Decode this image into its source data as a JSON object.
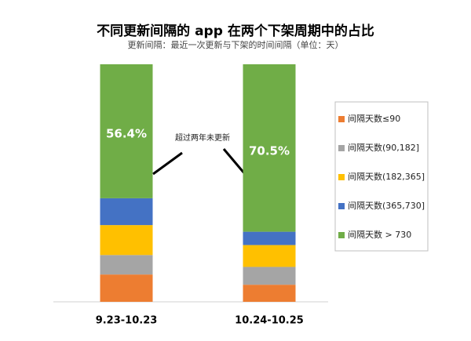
{
  "chart_data": {
    "type": "stacked_bar",
    "title": "不同更新间隔的 app 在两个下架周期中的占比",
    "subtitle": "更新间隔：最近一次更新与下架的时间间隔（单位：天）",
    "annotation": "超过两年未更新",
    "categories": [
      "9.23-10.23",
      "10.24-10.25"
    ],
    "series": [
      {
        "name": "间隔天数≤90",
        "color": "#ed7d31",
        "values": [
          11.5,
          7.2
        ]
      },
      {
        "name": "间隔天数(90,182]",
        "color": "#a5a5a5",
        "values": [
          8.2,
          7.5
        ]
      },
      {
        "name": "间隔天数(182,365]",
        "color": "#ffc000",
        "values": [
          12.6,
          9.2
        ]
      },
      {
        "name": "间隔天数(365,730]",
        "color": "#4472c4",
        "values": [
          11.3,
          5.6
        ]
      },
      {
        "name": "间隔天数 > 730",
        "color": "#70ad47",
        "values": [
          56.4,
          70.5
        ],
        "value_labels": [
          "56.4%",
          "70.5%"
        ]
      }
    ],
    "legend": "right"
  }
}
